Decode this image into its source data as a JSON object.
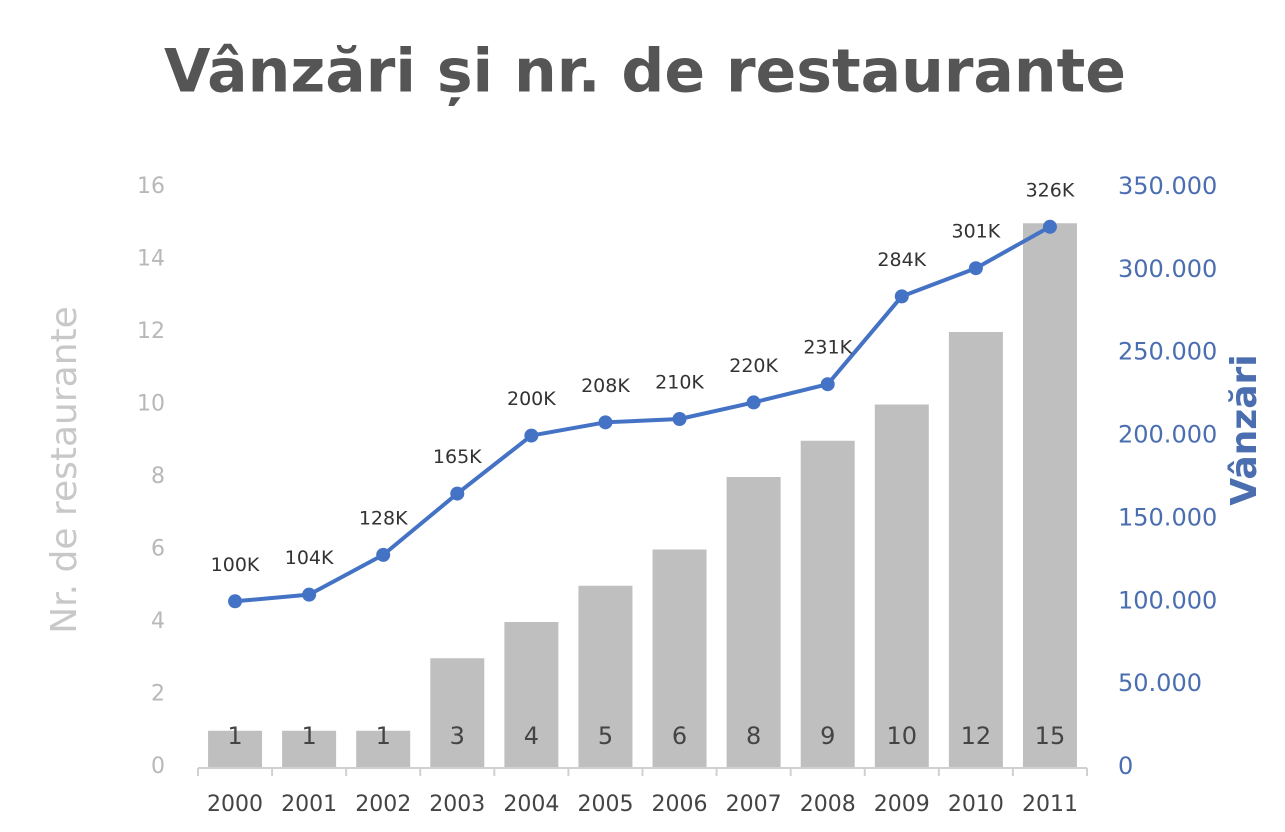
{
  "chart_data": {
    "type": "combo",
    "title": "Vânzări și nr. de restaurante",
    "y_label": "Nr. de restaurante",
    "y2_label": "Vânzări",
    "categories": [
      "2000",
      "2001",
      "2002",
      "2003",
      "2004",
      "2005",
      "2006",
      "2007",
      "2008",
      "2009",
      "2010",
      "2011"
    ],
    "series": [
      {
        "type": "bar",
        "color": "#bfbfbf",
        "values": [
          1,
          1,
          1,
          3,
          4,
          5,
          6,
          8,
          9,
          10,
          12,
          15
        ]
      },
      {
        "type": "line",
        "axis": "y2",
        "color": "#4472c4",
        "values": [
          100000,
          104000,
          128000,
          165000,
          200000,
          208000,
          210000,
          220000,
          231000,
          284000,
          301000,
          326000
        ],
        "value_labels": [
          "100K",
          "104K",
          "128K",
          "165K",
          "200K",
          "208K",
          "210K",
          "220K",
          "231K",
          "284K",
          "301K",
          "326K"
        ]
      }
    ],
    "ylim": [
      0,
      16
    ],
    "yticks": [
      0,
      2,
      4,
      6,
      8,
      10,
      12,
      14,
      16
    ],
    "y2lim": [
      0,
      350000
    ],
    "y2ticks": [
      0,
      {
        "value": 50000,
        "label": "50.000"
      },
      {
        "value": 100000,
        "label": "100.000"
      },
      {
        "value": 150000,
        "label": "150.000"
      },
      {
        "value": 200000,
        "label": "200.000"
      },
      {
        "value": 250000,
        "label": "250.000"
      },
      {
        "value": 300000,
        "label": "300.000"
      },
      {
        "value": 350000,
        "label": "350.000"
      }
    ],
    "grid": false
  }
}
